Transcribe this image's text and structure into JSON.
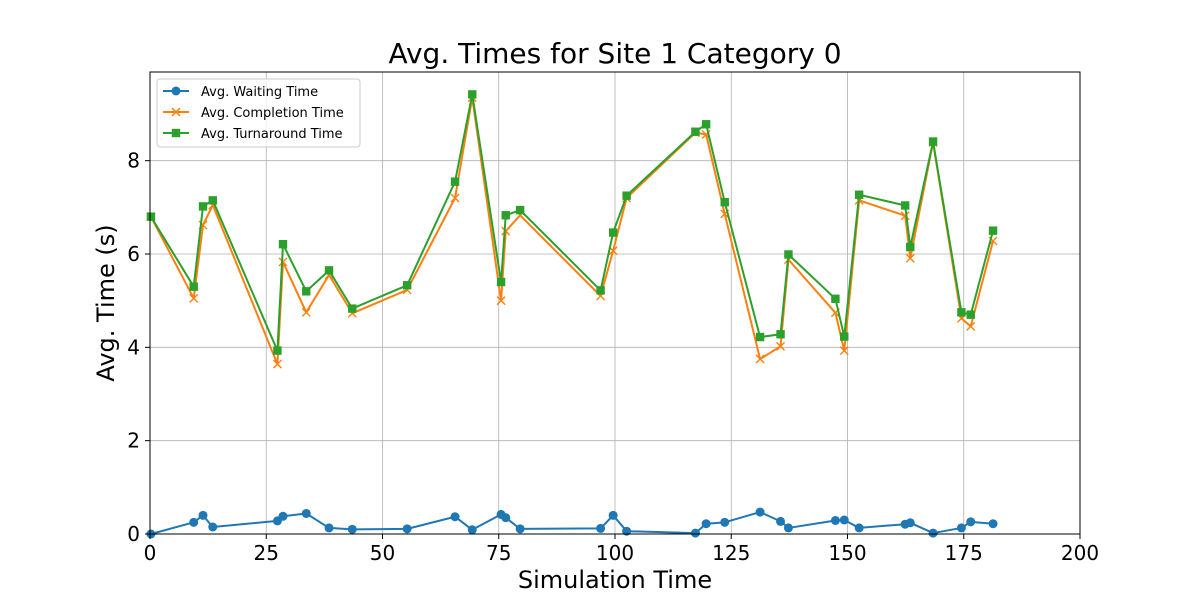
{
  "chart_data": {
    "type": "line",
    "title": "Avg. Times for Site 1 Category 0",
    "xlabel": "Simulation Time",
    "ylabel": "Avg. Time (s)",
    "xlim": [
      0,
      200
    ],
    "ylim": [
      0,
      9.9
    ],
    "xticks": [
      0,
      25,
      50,
      75,
      100,
      125,
      150,
      175,
      200
    ],
    "yticks": [
      0,
      2,
      4,
      6,
      8
    ],
    "grid": true,
    "legend_position": "top-left",
    "x": [
      0.2,
      9.4,
      11.4,
      13.5,
      27.4,
      28.6,
      33.6,
      38.5,
      43.5,
      55.3,
      65.6,
      69.3,
      75.5,
      76.5,
      79.6,
      96.9,
      99.6,
      102.5,
      117.3,
      119.6,
      123.6,
      131.2,
      135.6,
      137.3,
      147.4,
      149.3,
      152.5,
      162.4,
      163.5,
      168.4,
      174.5,
      176.5,
      181.3
    ],
    "series": [
      {
        "name": "Avg. Waiting Time",
        "color": "#1f77b4",
        "marker": "circle",
        "values": [
          0.0,
          0.25,
          0.4,
          0.15,
          0.28,
          0.38,
          0.44,
          0.13,
          0.1,
          0.11,
          0.37,
          0.09,
          0.42,
          0.35,
          0.11,
          0.12,
          0.4,
          0.06,
          0.02,
          0.22,
          0.25,
          0.47,
          0.27,
          0.13,
          0.29,
          0.3,
          0.13,
          0.21,
          0.24,
          0.02,
          0.13,
          0.26,
          0.22
        ]
      },
      {
        "name": "Avg. Completion Time",
        "color": "#ff7f0e",
        "marker": "x",
        "values": [
          6.8,
          5.05,
          6.62,
          7.05,
          3.64,
          5.83,
          4.75,
          5.55,
          4.73,
          5.23,
          7.2,
          9.35,
          5.0,
          6.49,
          6.83,
          5.1,
          6.07,
          7.2,
          8.6,
          8.56,
          6.86,
          3.75,
          4.02,
          5.88,
          4.74,
          3.93,
          7.15,
          6.82,
          5.91,
          8.39,
          4.62,
          4.45,
          6.28
        ]
      },
      {
        "name": "Avg. Turnaround Time",
        "color": "#2ca02c",
        "marker": "square",
        "values": [
          6.8,
          5.3,
          7.02,
          7.15,
          3.93,
          6.21,
          5.2,
          5.65,
          4.83,
          5.33,
          7.55,
          9.42,
          5.4,
          6.83,
          6.94,
          5.22,
          6.46,
          7.25,
          8.62,
          8.78,
          7.11,
          4.22,
          4.28,
          5.99,
          5.04,
          4.23,
          7.27,
          7.04,
          6.15,
          8.41,
          4.75,
          4.7,
          6.5
        ]
      }
    ]
  }
}
